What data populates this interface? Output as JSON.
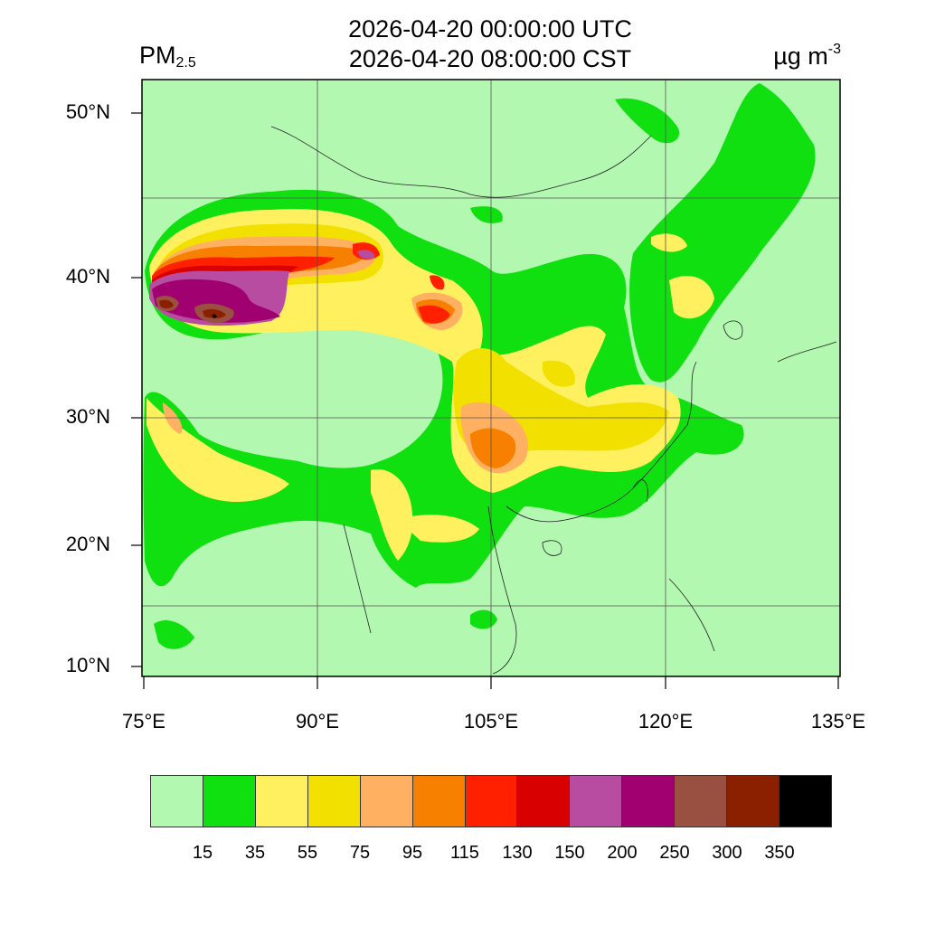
{
  "header": {
    "title_utc": "2026-04-20 00:00:00 UTC",
    "title_cst": "2026-04-20 08:00:00 CST",
    "variable_main": "PM",
    "variable_sub": "2.5",
    "unit_main": "µg m",
    "unit_sup": "-3"
  },
  "map": {
    "extent": {
      "lon_min": 75,
      "lon_max": 135,
      "lat_min": 9,
      "lat_max": 52
    },
    "lat_ticks": [
      {
        "value": 50,
        "label": "50°N"
      },
      {
        "value": 40,
        "label": "40°N"
      },
      {
        "value": 30,
        "label": "30°N"
      },
      {
        "value": 20,
        "label": "20°N"
      },
      {
        "value": 10,
        "label": "10°N"
      }
    ],
    "lon_ticks": [
      {
        "value": 75,
        "label": "75°E"
      },
      {
        "value": 90,
        "label": "90°E"
      },
      {
        "value": 105,
        "label": "105°E"
      },
      {
        "value": 120,
        "label": "120°E"
      },
      {
        "value": 135,
        "label": "135°E"
      }
    ],
    "background_color": "#b3f8b0"
  },
  "legend": {
    "colors": [
      "#b3f8b0",
      "#10e010",
      "#fff060",
      "#f2e000",
      "#ffb060",
      "#f88000",
      "#ff2000",
      "#d80000",
      "#b84ca0",
      "#a00070",
      "#9a5040",
      "#8a2000",
      "#000000"
    ],
    "tick_labels": [
      "15",
      "35",
      "55",
      "75",
      "95",
      "115",
      "130",
      "150",
      "200",
      "250",
      "300",
      "350"
    ]
  }
}
